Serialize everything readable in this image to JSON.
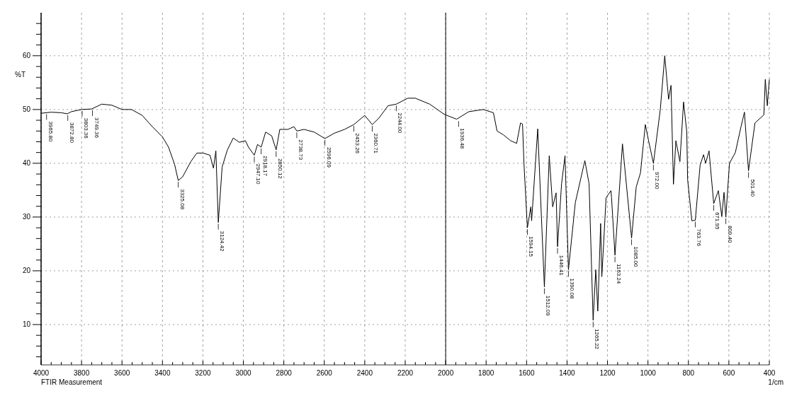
{
  "chart_data": {
    "type": "line",
    "ylabel": "%T",
    "xlabel": "1/cm",
    "xlim": [
      4000,
      400
    ],
    "ylim": [
      2.5,
      68
    ],
    "xticks": [
      4000,
      3800,
      3600,
      3400,
      3200,
      3000,
      2800,
      2600,
      2400,
      2200,
      2000,
      1800,
      1600,
      1400,
      1200,
      1000,
      800,
      600,
      400,
      {
        "value": 3950,
        "label": null
      },
      {
        "value": 3900,
        "label": null
      },
      {
        "value": 3850,
        "label": null
      },
      {
        "value": 3750,
        "label": null
      },
      {
        "value": 3700,
        "label": null
      },
      {
        "value": 3650,
        "label": null
      },
      {
        "value": 3550,
        "label": null
      },
      {
        "value": 3500,
        "label": null
      },
      {
        "value": 3450,
        "label": null
      },
      {
        "value": 3350,
        "label": null
      },
      {
        "value": 3300,
        "label": null
      },
      {
        "value": 3250,
        "label": null
      },
      {
        "value": 3150,
        "label": null
      },
      {
        "value": 3100,
        "label": null
      },
      {
        "value": 3050,
        "label": null
      },
      {
        "value": 2950,
        "label": null
      },
      {
        "value": 2900,
        "label": null
      },
      {
        "value": 2850,
        "label": null
      },
      {
        "value": 2750,
        "label": null
      },
      {
        "value": 2700,
        "label": null
      },
      {
        "value": 2650,
        "label": null
      },
      {
        "value": 2550,
        "label": null
      },
      {
        "value": 2500,
        "label": null
      },
      {
        "value": 2450,
        "label": null
      },
      {
        "value": 2350,
        "label": null
      },
      {
        "value": 2300,
        "label": null
      },
      {
        "value": 2250,
        "label": null
      },
      {
        "value": 2150,
        "label": null
      },
      {
        "value": 2100,
        "label": null
      },
      {
        "value": 2050,
        "label": null
      },
      {
        "value": 1950,
        "label": null
      },
      {
        "value": 1900,
        "label": null
      },
      {
        "value": 1850,
        "label": null
      },
      {
        "value": 1750,
        "label": null
      },
      {
        "value": 1700,
        "label": null
      },
      {
        "value": 1650,
        "label": null
      },
      {
        "value": 1550,
        "label": null
      },
      {
        "value": 1500,
        "label": null
      },
      {
        "value": 1450,
        "label": null
      },
      {
        "value": 1350,
        "label": null
      },
      {
        "value": 1300,
        "label": null
      },
      {
        "value": 1250,
        "label": null
      },
      {
        "value": 1150,
        "label": null
      },
      {
        "value": 1100,
        "label": null
      },
      {
        "value": 1050,
        "label": null
      },
      {
        "value": 950,
        "label": null
      },
      {
        "value": 900,
        "label": null
      },
      {
        "value": 850,
        "label": null
      },
      {
        "value": 750,
        "label": null
      },
      {
        "value": 700,
        "label": null
      },
      {
        "value": 650,
        "label": null
      },
      {
        "value": 550,
        "label": null
      },
      {
        "value": 500,
        "label": null
      },
      {
        "value": 450,
        "label": null
      }
    ],
    "yticks": [
      10,
      20,
      30,
      40,
      50,
      60,
      {
        "value": 4,
        "label": null
      },
      {
        "value": 6,
        "label": null
      },
      {
        "value": 8,
        "label": null
      },
      {
        "value": 12,
        "label": null
      },
      {
        "value": 14,
        "label": null
      },
      {
        "value": 16,
        "label": null
      },
      {
        "value": 18,
        "label": null
      },
      {
        "value": 22,
        "label": null
      },
      {
        "value": 24,
        "label": null
      },
      {
        "value": 26,
        "label": null
      },
      {
        "value": 28,
        "label": null
      },
      {
        "value": 32,
        "label": null
      },
      {
        "value": 34,
        "label": null
      },
      {
        "value": 36,
        "label": null
      },
      {
        "value": 38,
        "label": null
      },
      {
        "value": 42,
        "label": null
      },
      {
        "value": 44,
        "label": null
      },
      {
        "value": 46,
        "label": null
      },
      {
        "value": 48,
        "label": null
      },
      {
        "value": 52,
        "label": null
      },
      {
        "value": 54,
        "label": null
      },
      {
        "value": 56,
        "label": null
      },
      {
        "value": 58,
        "label": null
      },
      {
        "value": 62,
        "label": null
      },
      {
        "value": 64,
        "label": null
      },
      {
        "value": 66,
        "label": null
      }
    ],
    "grid": true,
    "marker": "none",
    "line_style": "solid",
    "ref_lines": [
      {
        "axis": "x",
        "value": 2000,
        "color": "#000000",
        "line_style": "solid"
      }
    ],
    "series": [
      {
        "color": "#000000",
        "x": [
          4000,
          3950,
          3900,
          3870,
          3850,
          3800,
          3750,
          3700,
          3650,
          3600,
          3553,
          3500,
          3450,
          3400,
          3370,
          3340,
          3322,
          3300,
          3260,
          3230,
          3200,
          3165,
          3148,
          3136,
          3124,
          3105,
          3080,
          3050,
          3020,
          2990,
          2975,
          2946,
          2930,
          2912,
          2890,
          2860,
          2838,
          2820,
          2780,
          2750,
          2736,
          2700,
          2650,
          2597,
          2550,
          2500,
          2454,
          2400,
          2363,
          2330,
          2285,
          2244,
          2187,
          2150,
          2079,
          2007,
          1946,
          1885,
          1814,
          1764,
          1746,
          1715,
          1679,
          1649,
          1630,
          1620,
          1613,
          1596,
          1579,
          1575,
          1545,
          1512,
          1488,
          1471,
          1454,
          1447,
          1427,
          1410,
          1393,
          1359,
          1312,
          1291,
          1271,
          1258,
          1248,
          1234,
          1228,
          1207,
          1183,
          1180,
          1163,
          1126,
          1081,
          1058,
          1037,
          1013,
          997,
          973,
          939,
          917,
          898,
          886,
          874,
          862,
          842,
          824,
          808,
          804,
          783,
          766,
          742,
          725,
          715,
          698,
          675,
          652,
          635,
          624,
          615,
          597,
          568,
          540,
          523,
          503,
          471,
          427,
          420,
          410,
          400
        ],
        "values": [
          49.3,
          49.5,
          49.4,
          49.2,
          49.6,
          50,
          50.1,
          51,
          50.8,
          50,
          50,
          48.9,
          46.8,
          44.9,
          43,
          39.8,
          36.8,
          37.5,
          40.3,
          41.9,
          41.9,
          41.5,
          39.1,
          42.3,
          29,
          39.3,
          42.4,
          44.7,
          43.9,
          44.2,
          43,
          41.5,
          43.5,
          43,
          45.8,
          45.1,
          42.5,
          46.3,
          46.3,
          46.8,
          46,
          46.3,
          45.8,
          44.6,
          45.6,
          46.3,
          47.2,
          48.9,
          47.2,
          48.4,
          50.7,
          51,
          52.1,
          52.1,
          51,
          49.1,
          48.2,
          49.6,
          50,
          49.4,
          46,
          45.3,
          44.2,
          43.7,
          47.5,
          47.3,
          40,
          28,
          31.9,
          29.3,
          46.4,
          17,
          41.4,
          31.9,
          34.5,
          24.5,
          36.2,
          41.4,
          20.2,
          32.7,
          40.5,
          36.2,
          10.8,
          20.2,
          12.5,
          28.8,
          18.9,
          33.6,
          34.9,
          33.6,
          22.9,
          43.6,
          26.1,
          35.6,
          38.2,
          47.2,
          44.2,
          40,
          50,
          60,
          51.9,
          54.5,
          36.1,
          44.2,
          40.3,
          51.4,
          45.8,
          37,
          29.3,
          29.4,
          39.7,
          41.6,
          40,
          42.3,
          32.5,
          34.9,
          30.1,
          34.6,
          30,
          40,
          42,
          46.8,
          49.5,
          38.6,
          47.5,
          49,
          55.6,
          50.7,
          55.6
        ]
      }
    ],
    "annotations": [
      "FTIR Measurement",
      {
        "text": "3965.80",
        "x": 3973,
        "y": 49.4
      },
      {
        "text": "3872.80",
        "x": 3868,
        "y": 49.2
      },
      {
        "text": "3803.36",
        "x": 3797,
        "y": 50
      },
      {
        "text": "3749.36",
        "x": 3746,
        "y": 50.1
      },
      {
        "text": "3325.08",
        "x": 3322,
        "y": 36.8
      },
      {
        "text": "3124.42",
        "x": 3124,
        "y": 29
      },
      {
        "text": "2947.10",
        "x": 2946,
        "y": 41.5
      },
      {
        "text": "2918.17",
        "x": 2912,
        "y": 43
      },
      {
        "text": "2850.12",
        "x": 2838,
        "y": 42.5
      },
      {
        "text": "2738.73",
        "x": 2736,
        "y": 46
      },
      {
        "text": "2596.09",
        "x": 2597,
        "y": 44.6
      },
      {
        "text": "2453.26",
        "x": 2454,
        "y": 47.2
      },
      {
        "text": "2360.71",
        "x": 2363,
        "y": 47.2
      },
      {
        "text": "2244.00",
        "x": 2244,
        "y": 51
      },
      {
        "text": "1936.48",
        "x": 1936,
        "y": 48.1
      },
      {
        "text": "1594.15",
        "x": 1596,
        "y": 28
      },
      {
        "text": "1512.09",
        "x": 1512,
        "y": 17
      },
      {
        "text": "1446.41",
        "x": 1447,
        "y": 24.5
      },
      {
        "text": "1390.08",
        "x": 1393,
        "y": 20.2
      },
      {
        "text": "1265.22",
        "x": 1271,
        "y": 10.8
      },
      {
        "text": "1163.24",
        "x": 1163,
        "y": 22.9
      },
      {
        "text": "1085.00",
        "x": 1081,
        "y": 26.1
      },
      {
        "text": "972.00",
        "x": 973,
        "y": 40
      },
      {
        "text": "763.76",
        "x": 766,
        "y": 29.4
      },
      {
        "text": "671.95",
        "x": 675,
        "y": 32.5
      },
      {
        "text": "609.40",
        "x": 615,
        "y": 30
      },
      {
        "text": "501.40",
        "x": 503,
        "y": 38.6
      }
    ]
  }
}
